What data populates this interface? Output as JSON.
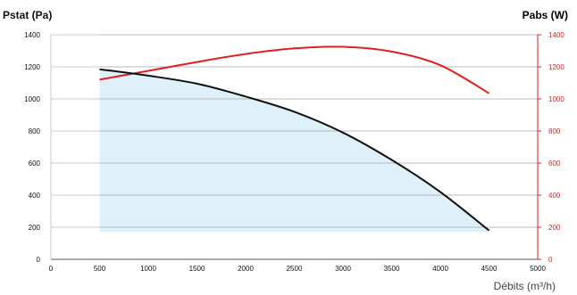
{
  "colors": {
    "pressure_curve": "#111111",
    "power_curve": "#e02020",
    "power_axis": "#e02020",
    "fill": "#def1fa",
    "grid": "#bbbbbb"
  },
  "chart_data": {
    "type": "line",
    "ylabel_left": "Pstat (Pa)",
    "ylabel_right": "Pabs (W)",
    "xlabel": "Débits (m³/h)",
    "xlim": [
      0,
      5000
    ],
    "ylim_left": [
      0,
      1400
    ],
    "ylim_right": [
      0,
      1400
    ],
    "xticks": [
      "0",
      "500",
      "1000",
      "1500",
      "2000",
      "2500",
      "3000",
      "3500",
      "4000",
      "4500",
      "5000"
    ],
    "yticks_left": [
      "0",
      "200",
      "400",
      "600",
      "800",
      "1000",
      "1200",
      "1400"
    ],
    "yticks_right": [
      "0",
      "200",
      "400",
      "600",
      "800",
      "1000",
      "1200",
      "1400"
    ],
    "grid": true,
    "series": [
      {
        "axis": "left",
        "x": [
          500,
          1000,
          1500,
          2000,
          2500,
          3000,
          3500,
          4000,
          4500
        ],
        "values": [
          1185,
          1145,
          1095,
          1015,
          920,
          790,
          620,
          420,
          180
        ]
      },
      {
        "axis": "right",
        "x": [
          500,
          1000,
          1500,
          2000,
          2500,
          3000,
          3500,
          4000,
          4500
        ],
        "values": [
          1120,
          1175,
          1230,
          1280,
          1315,
          1325,
          1295,
          1210,
          1035
        ]
      }
    ],
    "operating_zone": {
      "xmin": 500,
      "xmax": 4500,
      "ymin": 170
    }
  }
}
